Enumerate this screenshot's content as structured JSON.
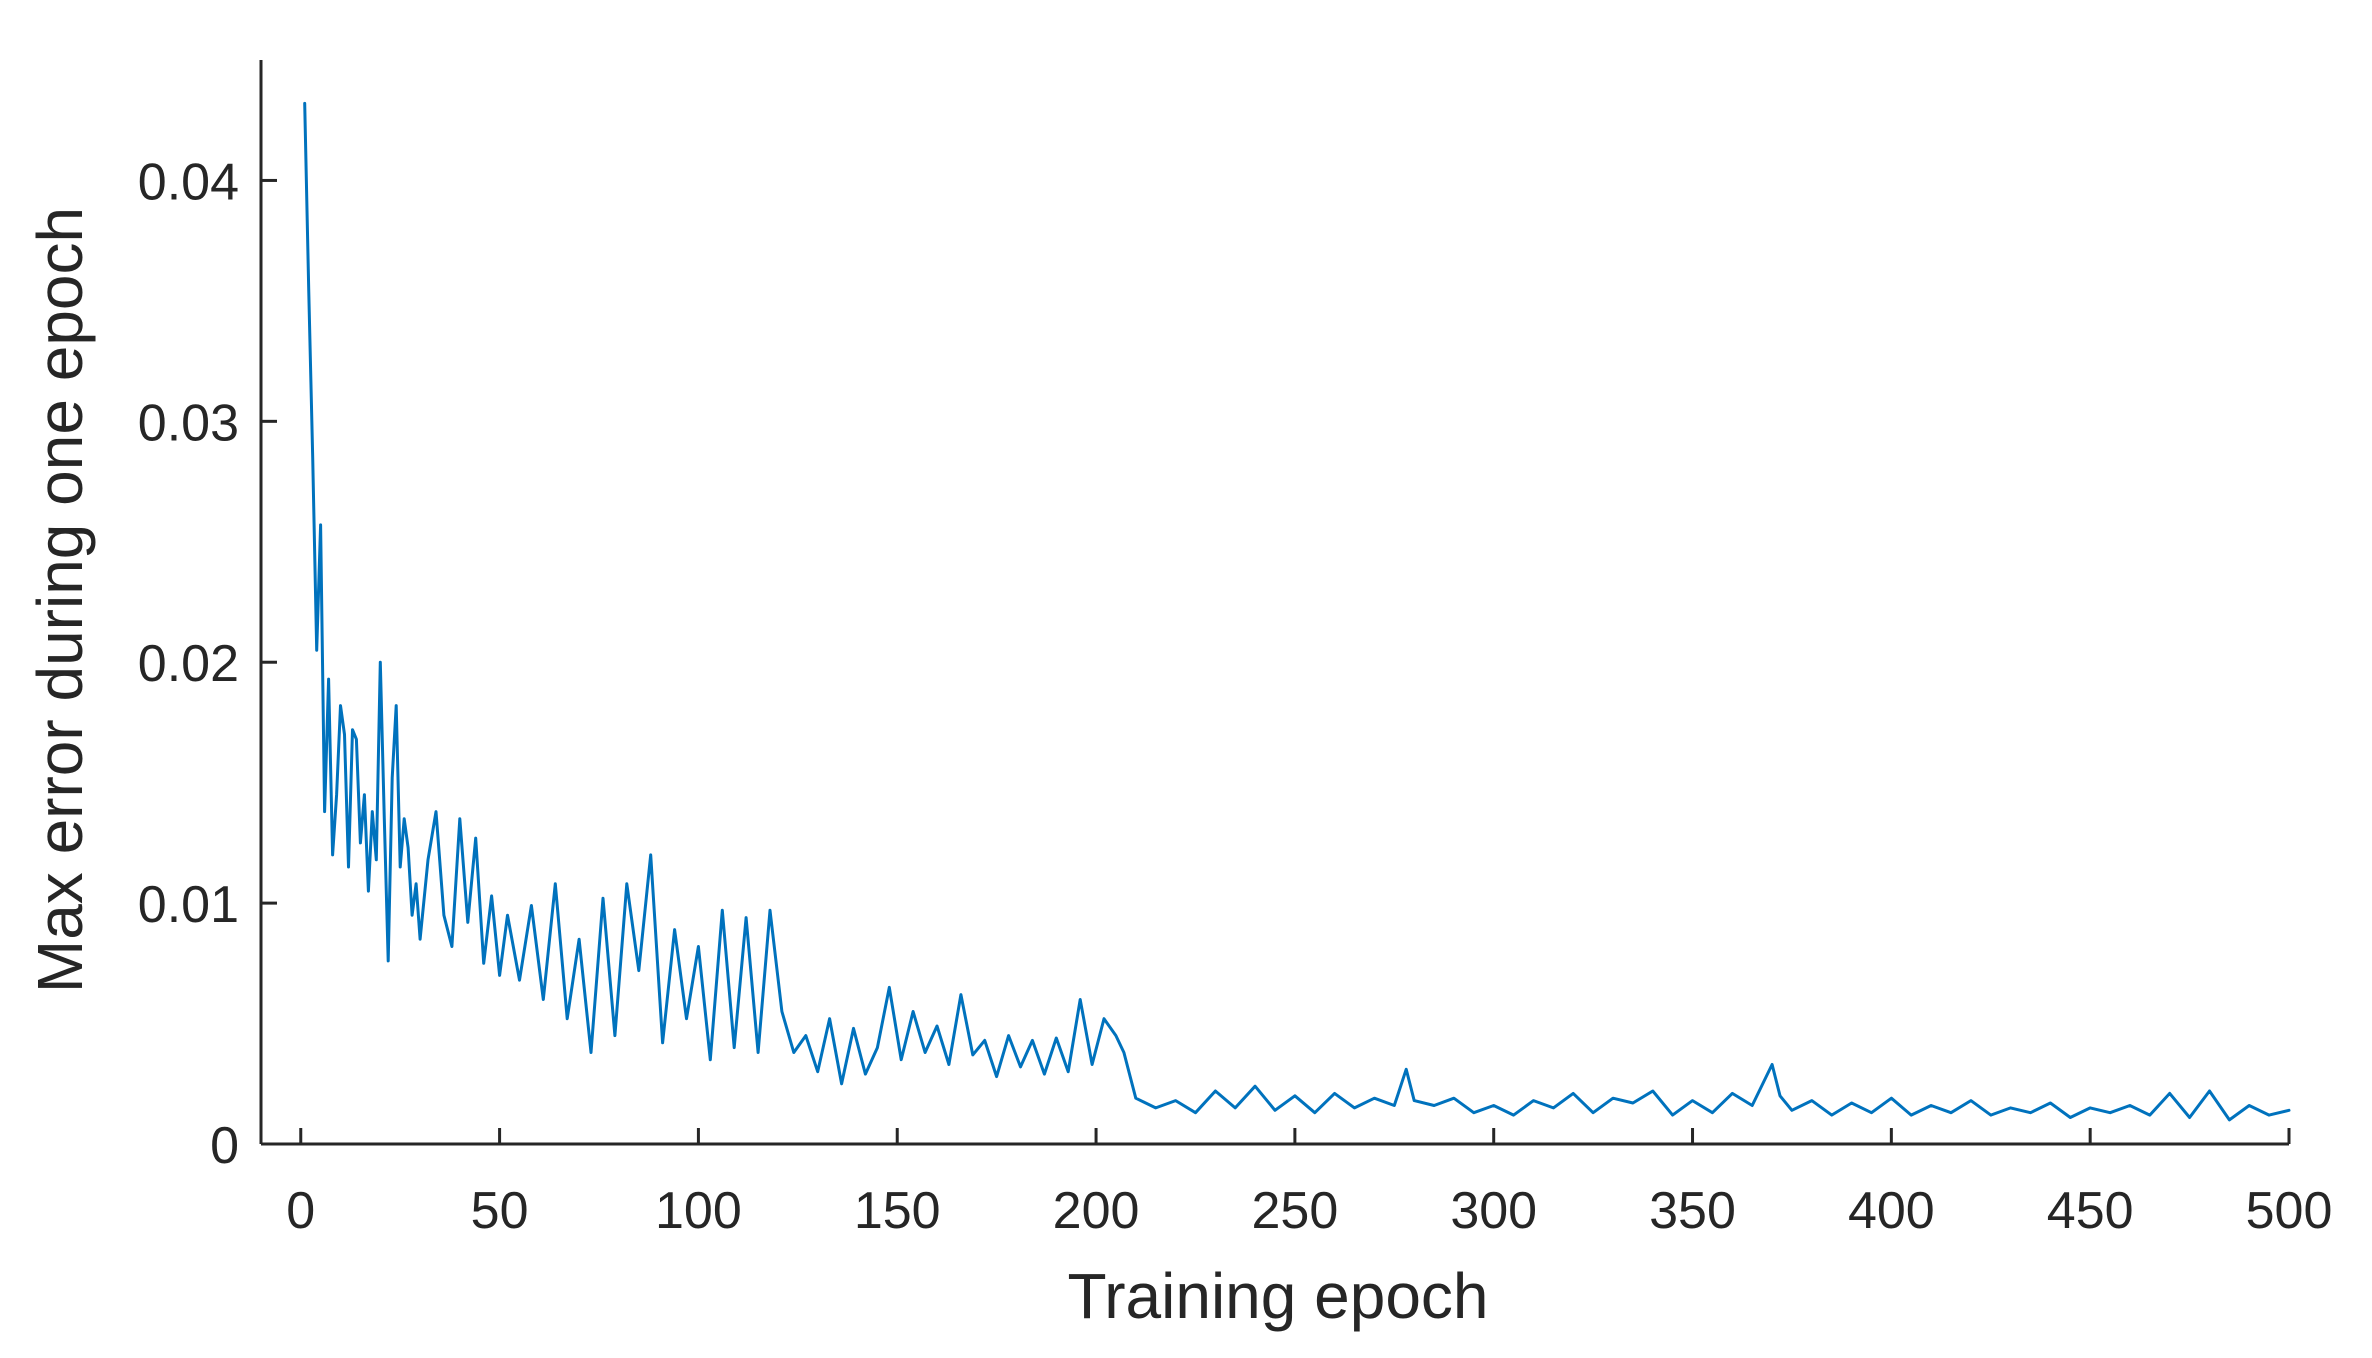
{
  "chart_data": {
    "type": "line",
    "title": "",
    "xlabel": "Training epoch",
    "ylabel": "Max error during one epoch",
    "xlim": [
      -10,
      500
    ],
    "ylim": [
      0,
      0.045
    ],
    "xticks": [
      0,
      50,
      100,
      150,
      200,
      250,
      300,
      350,
      400,
      450,
      500
    ],
    "xtick_labels": [
      "0",
      "50",
      "100",
      "150",
      "200",
      "250",
      "300",
      "350",
      "400",
      "450",
      "500"
    ],
    "yticks": [
      0,
      0.01,
      0.02,
      0.03,
      0.04
    ],
    "ytick_labels": [
      "0",
      "0.01",
      "0.02",
      "0.03",
      "0.04"
    ],
    "grid": false,
    "legend": "none",
    "box": "left-bottom axes only",
    "line_color": "#0072BD",
    "axis_color": "#262626",
    "series": [
      {
        "name": "",
        "x": [
          1,
          2,
          3,
          4,
          5,
          6,
          7,
          8,
          9,
          10,
          11,
          12,
          13,
          14,
          15,
          16,
          17,
          18,
          19,
          20,
          21,
          22,
          23,
          24,
          25,
          26,
          27,
          28,
          29,
          30,
          32,
          34,
          36,
          38,
          40,
          42,
          44,
          46,
          48,
          50,
          52,
          55,
          58,
          61,
          64,
          67,
          70,
          73,
          76,
          79,
          82,
          85,
          88,
          91,
          94,
          97,
          100,
          103,
          106,
          109,
          112,
          115,
          118,
          121,
          124,
          127,
          130,
          133,
          136,
          139,
          142,
          145,
          148,
          151,
          154,
          157,
          160,
          163,
          166,
          169,
          172,
          175,
          178,
          181,
          184,
          187,
          190,
          193,
          196,
          199,
          202,
          205,
          207,
          210,
          215,
          220,
          225,
          230,
          235,
          240,
          245,
          250,
          255,
          260,
          265,
          270,
          275,
          278,
          280,
          285,
          290,
          295,
          300,
          305,
          310,
          315,
          320,
          325,
          330,
          335,
          340,
          345,
          350,
          355,
          360,
          365,
          370,
          372,
          375,
          380,
          385,
          390,
          395,
          400,
          405,
          410,
          415,
          420,
          425,
          430,
          435,
          440,
          445,
          450,
          455,
          460,
          465,
          470,
          475,
          480,
          485,
          490,
          495,
          500
        ],
        "y": [
          0.0432,
          0.0355,
          0.0285,
          0.0205,
          0.0257,
          0.0138,
          0.0193,
          0.012,
          0.0145,
          0.0182,
          0.017,
          0.0115,
          0.0172,
          0.0168,
          0.0125,
          0.0145,
          0.0105,
          0.0138,
          0.0118,
          0.02,
          0.0135,
          0.0076,
          0.0152,
          0.0182,
          0.0115,
          0.0135,
          0.0123,
          0.0095,
          0.0108,
          0.0085,
          0.0118,
          0.0138,
          0.0095,
          0.0082,
          0.0135,
          0.0092,
          0.0127,
          0.0075,
          0.0103,
          0.007,
          0.0095,
          0.0068,
          0.0099,
          0.006,
          0.0108,
          0.0052,
          0.0085,
          0.0038,
          0.0102,
          0.0045,
          0.0108,
          0.0072,
          0.012,
          0.0042,
          0.0089,
          0.0052,
          0.0082,
          0.0035,
          0.0097,
          0.004,
          0.0094,
          0.0038,
          0.0097,
          0.0055,
          0.0038,
          0.0045,
          0.003,
          0.0052,
          0.0025,
          0.0048,
          0.0029,
          0.004,
          0.0065,
          0.0035,
          0.0055,
          0.0038,
          0.0049,
          0.0033,
          0.0062,
          0.0037,
          0.0043,
          0.0028,
          0.0045,
          0.0032,
          0.0043,
          0.0029,
          0.0044,
          0.003,
          0.006,
          0.0033,
          0.0052,
          0.0045,
          0.0038,
          0.0019,
          0.0015,
          0.0018,
          0.0013,
          0.0022,
          0.0015,
          0.0024,
          0.0014,
          0.002,
          0.0013,
          0.0021,
          0.0015,
          0.0019,
          0.0016,
          0.0031,
          0.0018,
          0.0016,
          0.0019,
          0.0013,
          0.0016,
          0.0012,
          0.0018,
          0.0015,
          0.0021,
          0.0013,
          0.0019,
          0.0017,
          0.0022,
          0.0012,
          0.0018,
          0.0013,
          0.0021,
          0.0016,
          0.0033,
          0.002,
          0.0014,
          0.0018,
          0.0012,
          0.0017,
          0.0013,
          0.0019,
          0.0012,
          0.0016,
          0.0013,
          0.0018,
          0.0012,
          0.0015,
          0.0013,
          0.0017,
          0.0011,
          0.0015,
          0.0013,
          0.0016,
          0.0012,
          0.0021,
          0.0011,
          0.0022,
          0.001,
          0.0016,
          0.0012,
          0.0014
        ]
      }
    ]
  }
}
